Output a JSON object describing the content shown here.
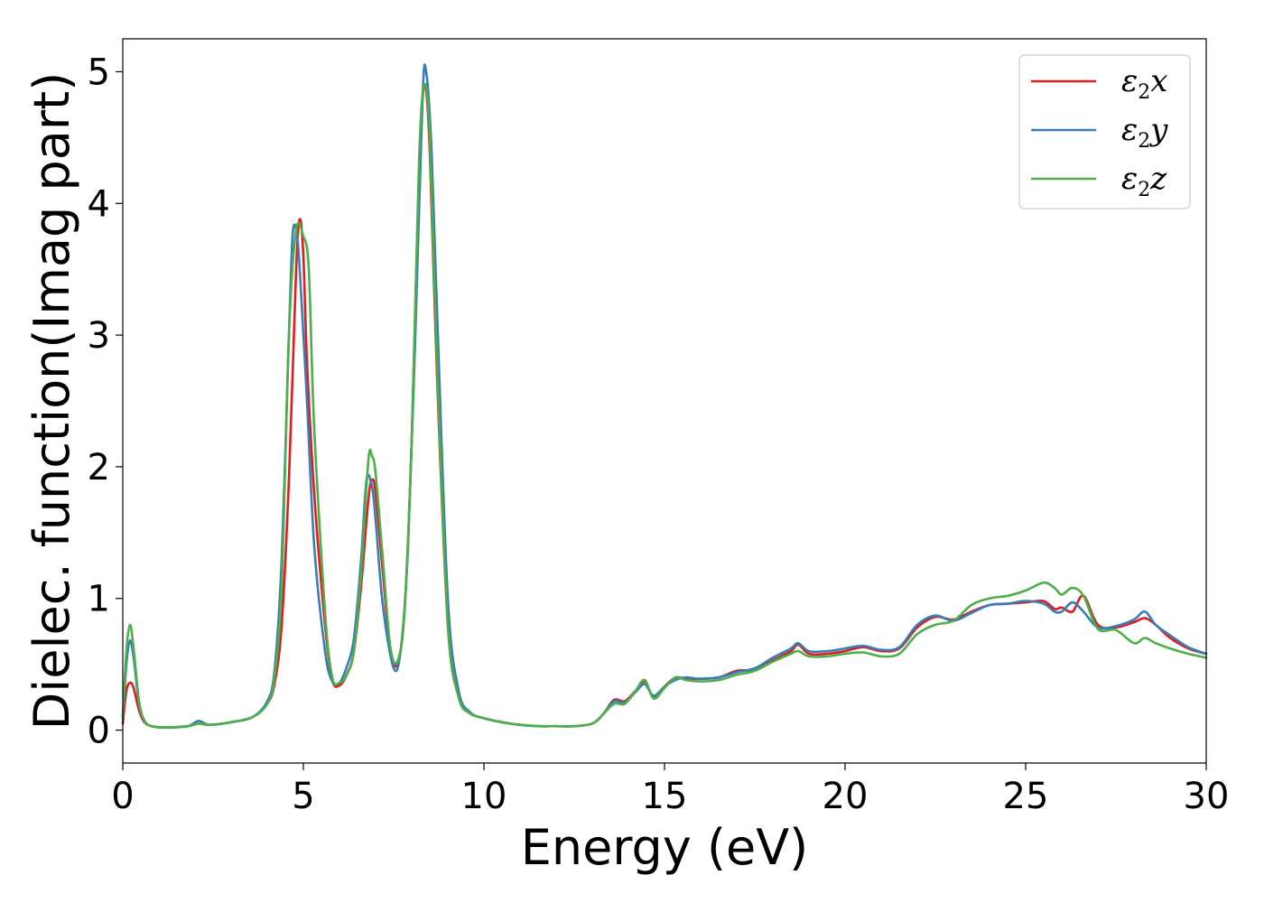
{
  "chart_data": {
    "type": "line",
    "xlabel": "Energy (eV)",
    "ylabel": "Dielec. function(Imag part)",
    "xlim": [
      0,
      30
    ],
    "ylim": [
      -0.25,
      5.25
    ],
    "xticks": [
      "0",
      "5",
      "10",
      "15",
      "20",
      "25",
      "30"
    ],
    "yticks": [
      "0",
      "1",
      "2",
      "3",
      "4",
      "5"
    ],
    "grid": false,
    "legend_position": "top-right",
    "series": [
      {
        "name": "ε2x",
        "legend_base": "ε",
        "legend_sub": "2",
        "legend_tail": "x",
        "color": "#e41a1c",
        "x": [
          0,
          0.1,
          0.2,
          0.3,
          0.45,
          0.6,
          0.8,
          1.2,
          1.8,
          2.1,
          2.4,
          3.0,
          3.6,
          4.0,
          4.2,
          4.4,
          4.6,
          4.8,
          4.9,
          5.0,
          5.1,
          5.3,
          5.6,
          5.8,
          6.0,
          6.2,
          6.4,
          6.6,
          6.8,
          6.9,
          7.0,
          7.2,
          7.4,
          7.6,
          7.8,
          8.0,
          8.2,
          8.35,
          8.5,
          8.7,
          9.0,
          9.3,
          9.6,
          10.0,
          10.5,
          11.0,
          11.5,
          12.0,
          12.5,
          13.0,
          13.3,
          13.6,
          13.9,
          14.2,
          14.45,
          14.7,
          15.0,
          15.3,
          15.6,
          16.0,
          16.5,
          17.0,
          17.5,
          18.0,
          18.5,
          18.7,
          19.0,
          19.5,
          20.0,
          20.5,
          21.0,
          21.5,
          22.0,
          22.5,
          23.0,
          23.5,
          24.0,
          24.5,
          25.0,
          25.5,
          25.8,
          26.0,
          26.3,
          26.6,
          27.0,
          27.5,
          28.0,
          28.3,
          28.6,
          29.0,
          29.5,
          30.0
        ],
        "y": [
          0.05,
          0.3,
          0.36,
          0.32,
          0.15,
          0.06,
          0.03,
          0.02,
          0.03,
          0.05,
          0.04,
          0.06,
          0.1,
          0.2,
          0.35,
          0.8,
          1.9,
          3.5,
          3.88,
          3.6,
          2.8,
          1.8,
          0.8,
          0.38,
          0.34,
          0.42,
          0.6,
          1.1,
          1.75,
          1.9,
          1.8,
          1.2,
          0.62,
          0.5,
          0.9,
          2.2,
          4.2,
          4.9,
          4.4,
          2.7,
          0.8,
          0.25,
          0.13,
          0.09,
          0.06,
          0.04,
          0.03,
          0.03,
          0.03,
          0.05,
          0.12,
          0.23,
          0.22,
          0.3,
          0.37,
          0.25,
          0.33,
          0.4,
          0.39,
          0.39,
          0.4,
          0.45,
          0.46,
          0.53,
          0.6,
          0.65,
          0.58,
          0.58,
          0.6,
          0.63,
          0.6,
          0.62,
          0.78,
          0.86,
          0.84,
          0.9,
          0.95,
          0.96,
          0.97,
          0.98,
          0.92,
          0.93,
          0.9,
          1.02,
          0.8,
          0.78,
          0.82,
          0.85,
          0.8,
          0.7,
          0.62,
          0.58
        ]
      },
      {
        "name": "ε2y",
        "legend_base": "ε",
        "legend_sub": "2",
        "legend_tail": "y",
        "color": "#377eb8",
        "x": [
          0,
          0.1,
          0.2,
          0.3,
          0.45,
          0.6,
          0.8,
          1.2,
          1.8,
          2.1,
          2.4,
          3.0,
          3.6,
          4.0,
          4.2,
          4.4,
          4.6,
          4.7,
          4.8,
          4.9,
          5.1,
          5.3,
          5.6,
          5.8,
          6.0,
          6.2,
          6.4,
          6.6,
          6.75,
          6.9,
          7.0,
          7.2,
          7.5,
          7.7,
          7.9,
          8.1,
          8.3,
          8.4,
          8.55,
          8.7,
          9.0,
          9.3,
          9.6,
          10.0,
          10.5,
          11.0,
          11.5,
          12.0,
          12.5,
          13.0,
          13.3,
          13.6,
          13.9,
          14.2,
          14.45,
          14.7,
          15.0,
          15.3,
          15.6,
          16.0,
          16.5,
          17.0,
          17.5,
          18.0,
          18.5,
          18.7,
          19.0,
          19.5,
          20.0,
          20.5,
          21.0,
          21.5,
          22.0,
          22.5,
          23.0,
          23.5,
          24.0,
          24.5,
          25.0,
          25.5,
          25.8,
          26.0,
          26.3,
          26.6,
          27.0,
          27.5,
          28.0,
          28.3,
          28.6,
          29.0,
          29.5,
          30.0
        ],
        "y": [
          0.1,
          0.5,
          0.68,
          0.55,
          0.2,
          0.07,
          0.03,
          0.02,
          0.03,
          0.07,
          0.04,
          0.06,
          0.1,
          0.22,
          0.45,
          1.3,
          3.0,
          3.75,
          3.8,
          3.5,
          2.5,
          1.4,
          0.6,
          0.37,
          0.36,
          0.48,
          0.7,
          1.3,
          1.9,
          1.85,
          1.6,
          0.95,
          0.47,
          0.62,
          1.4,
          3.0,
          4.8,
          5.0,
          4.4,
          3.2,
          1.0,
          0.3,
          0.14,
          0.09,
          0.06,
          0.04,
          0.03,
          0.03,
          0.03,
          0.05,
          0.12,
          0.22,
          0.21,
          0.29,
          0.35,
          0.26,
          0.33,
          0.38,
          0.4,
          0.39,
          0.4,
          0.44,
          0.47,
          0.55,
          0.62,
          0.66,
          0.6,
          0.6,
          0.62,
          0.64,
          0.61,
          0.63,
          0.8,
          0.87,
          0.83,
          0.89,
          0.95,
          0.96,
          0.98,
          0.96,
          0.9,
          0.9,
          0.97,
          0.9,
          0.78,
          0.79,
          0.84,
          0.9,
          0.8,
          0.72,
          0.63,
          0.58
        ]
      },
      {
        "name": "ε2z",
        "legend_base": "ε",
        "legend_sub": "2",
        "legend_tail": "z",
        "color": "#4daf4a",
        "x": [
          0,
          0.1,
          0.2,
          0.3,
          0.45,
          0.6,
          0.8,
          1.2,
          1.8,
          2.1,
          2.4,
          3.0,
          3.6,
          4.0,
          4.2,
          4.4,
          4.6,
          4.8,
          5.0,
          5.15,
          5.3,
          5.6,
          5.8,
          6.0,
          6.2,
          6.4,
          6.6,
          6.8,
          6.9,
          7.0,
          7.2,
          7.4,
          7.6,
          7.8,
          8.0,
          8.2,
          8.35,
          8.5,
          8.7,
          9.0,
          9.3,
          9.6,
          10.0,
          10.5,
          11.0,
          11.5,
          12.0,
          12.5,
          13.0,
          13.3,
          13.6,
          13.9,
          14.2,
          14.45,
          14.7,
          15.0,
          15.3,
          15.6,
          16.0,
          16.5,
          17.0,
          17.5,
          18.0,
          18.5,
          18.7,
          19.0,
          19.5,
          20.0,
          20.5,
          21.0,
          21.5,
          22.0,
          22.5,
          23.0,
          23.5,
          24.0,
          24.5,
          25.0,
          25.5,
          25.8,
          26.0,
          26.3,
          26.6,
          27.0,
          27.5,
          28.0,
          28.3,
          28.6,
          29.0,
          29.5,
          30.0
        ],
        "y": [
          0.1,
          0.6,
          0.8,
          0.62,
          0.22,
          0.07,
          0.03,
          0.02,
          0.03,
          0.05,
          0.04,
          0.06,
          0.1,
          0.2,
          0.4,
          1.1,
          3.0,
          3.8,
          3.75,
          3.5,
          2.3,
          0.9,
          0.4,
          0.36,
          0.42,
          0.6,
          1.2,
          2.05,
          2.08,
          1.95,
          1.3,
          0.65,
          0.52,
          0.9,
          2.2,
          4.3,
          4.9,
          4.5,
          2.8,
          0.8,
          0.25,
          0.13,
          0.09,
          0.06,
          0.04,
          0.03,
          0.03,
          0.03,
          0.05,
          0.12,
          0.2,
          0.2,
          0.3,
          0.38,
          0.24,
          0.32,
          0.4,
          0.38,
          0.37,
          0.38,
          0.42,
          0.45,
          0.52,
          0.58,
          0.6,
          0.56,
          0.56,
          0.58,
          0.59,
          0.56,
          0.58,
          0.73,
          0.8,
          0.83,
          0.95,
          1.0,
          1.02,
          1.06,
          1.12,
          1.08,
          1.03,
          1.08,
          1.02,
          0.77,
          0.76,
          0.66,
          0.7,
          0.66,
          0.62,
          0.58,
          0.55
        ]
      }
    ]
  }
}
